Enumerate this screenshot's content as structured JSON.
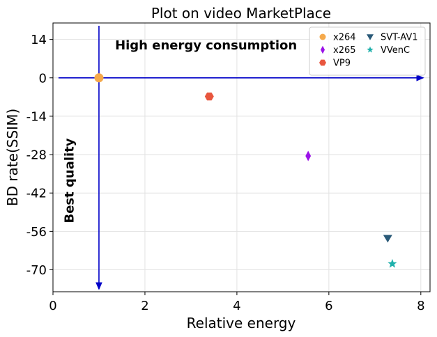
{
  "chart_data": {
    "type": "scatter",
    "title": "Plot on video MarketPlace",
    "xlabel": "Relative energy",
    "ylabel": "BD rate(SSIM)",
    "xlim": [
      0,
      8.2
    ],
    "ylim": [
      -78,
      20
    ],
    "xticks": [
      0,
      2,
      4,
      6,
      8
    ],
    "yticks": [
      14,
      0,
      -14,
      -28,
      -42,
      -56,
      -70
    ],
    "grid": true,
    "legend_position": "top-right",
    "series": [
      {
        "name": "x264",
        "marker": "circle",
        "color": "#f5a94b",
        "x": 1.0,
        "y": 0.0
      },
      {
        "name": "x265",
        "marker": "diamond",
        "color": "#9b12e8",
        "x": 5.55,
        "y": -28.5
      },
      {
        "name": "VP9",
        "marker": "hexagon",
        "color": "#e8563e",
        "x": 3.4,
        "y": -6.8
      },
      {
        "name": "SVT-AV1",
        "marker": "triangle-down",
        "color": "#2a5a78",
        "x": 7.28,
        "y": -58.5
      },
      {
        "name": "VVenC",
        "marker": "star",
        "color": "#1fb0ab",
        "x": 7.38,
        "y": -67.8
      }
    ],
    "annotations": [
      {
        "text": "High energy consumption",
        "x": 1.35,
        "y": 10.3,
        "rotation": 0
      },
      {
        "text": "Best quality",
        "x": 0.45,
        "y": -37.5,
        "rotation": -90
      }
    ],
    "arrows": [
      {
        "from": [
          0.12,
          0
        ],
        "to": [
          8.05,
          0
        ],
        "color": "#0000c8"
      },
      {
        "from": [
          1.0,
          19
        ],
        "to": [
          1.0,
          -77
        ],
        "color": "#0000c8"
      }
    ]
  }
}
